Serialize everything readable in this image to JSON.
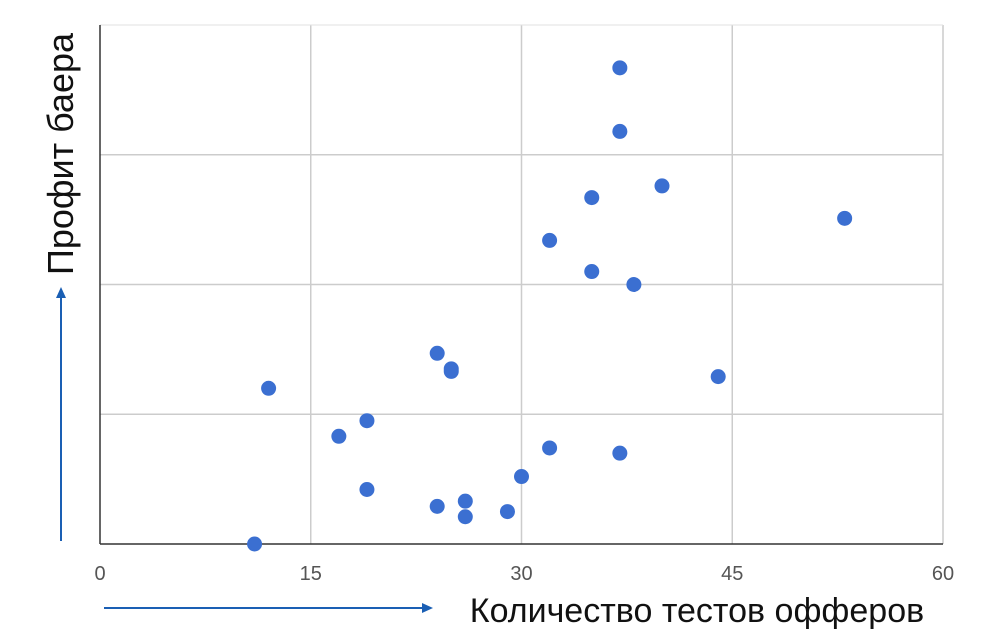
{
  "chart_data": {
    "type": "scatter",
    "title": "",
    "xlabel": "Количество тестов офферов",
    "ylabel": "Профит баера",
    "xlim": [
      0,
      60
    ],
    "ylim": [
      0,
      4
    ],
    "x_ticks": [
      "0",
      "15",
      "30",
      "45",
      "60"
    ],
    "y_gridlines": [
      1,
      2,
      3
    ],
    "grid": true,
    "y_tick_labels_shown": false,
    "point_color": "#3b6fd1",
    "arrow_color": "#1a5fb4",
    "series": [
      {
        "name": "",
        "points": [
          {
            "x": 37,
            "y": 3.67
          },
          {
            "x": 37,
            "y": 3.18
          },
          {
            "x": 40,
            "y": 2.76
          },
          {
            "x": 35,
            "y": 2.67
          },
          {
            "x": 53,
            "y": 2.51
          },
          {
            "x": 32,
            "y": 2.34
          },
          {
            "x": 35,
            "y": 2.1
          },
          {
            "x": 38,
            "y": 2.0
          },
          {
            "x": 24,
            "y": 1.47
          },
          {
            "x": 25,
            "y": 1.35
          },
          {
            "x": 25,
            "y": 1.33
          },
          {
            "x": 44,
            "y": 1.29
          },
          {
            "x": 12,
            "y": 1.2
          },
          {
            "x": 19,
            "y": 0.95
          },
          {
            "x": 17,
            "y": 0.83
          },
          {
            "x": 32,
            "y": 0.74
          },
          {
            "x": 37,
            "y": 0.7
          },
          {
            "x": 30,
            "y": 0.52
          },
          {
            "x": 19,
            "y": 0.42
          },
          {
            "x": 26,
            "y": 0.33
          },
          {
            "x": 24,
            "y": 0.29
          },
          {
            "x": 29,
            "y": 0.25
          },
          {
            "x": 26,
            "y": 0.21
          },
          {
            "x": 11,
            "y": 0.0
          }
        ]
      }
    ]
  }
}
